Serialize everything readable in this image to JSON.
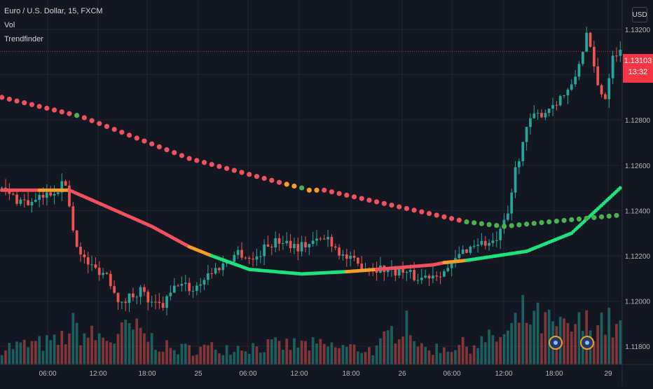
{
  "legend": {
    "symbol": "Euro / U.S. Dollar, 15, FXCM",
    "indicator_1": "Vol",
    "indicator_2": "Trendfinder"
  },
  "currency_button": "USD",
  "last_price": {
    "value": "1.13103",
    "countdown": "13:32"
  },
  "colors": {
    "background": "#131722",
    "grid": "#1f2430",
    "up_candle": "#26a69a",
    "down_candle": "#ef5350",
    "trend_bearish": "#f0525d",
    "trend_bullish": "#1ee37c",
    "trend_neutral": "#f59d29",
    "trend_green_dot": "#4caf50",
    "price_line": "#f23645"
  },
  "event_marker_icons": [
    "event-icon",
    "event-icon"
  ],
  "chart_data": {
    "type": "candlestick",
    "title": "Euro / U.S. Dollar, 15, FXCM",
    "y_axis": {
      "ticks": [
        1.132,
        1.13,
        1.128,
        1.126,
        1.124,
        1.122,
        1.12,
        1.118
      ],
      "tick_labels": [
        "1.13200",
        "1.13000",
        "1.12800",
        "1.12600",
        "1.12400",
        "1.12200",
        "1.12000",
        "1.11800"
      ],
      "range": [
        1.1172,
        1.1333
      ]
    },
    "x_axis": {
      "tick_labels": [
        "06:00",
        "12:00",
        "18:00",
        "25",
        "06:00",
        "12:00",
        "18:00",
        "26",
        "06:00",
        "12:00",
        "18:00",
        "29"
      ]
    },
    "price_path": [
      [
        0,
        1.125
      ],
      [
        5,
        1.1245
      ],
      [
        9,
        1.1243
      ],
      [
        14,
        1.1248
      ],
      [
        18,
        1.1252
      ],
      [
        20,
        1.1232
      ],
      [
        22,
        1.122
      ],
      [
        25,
        1.1215
      ],
      [
        29,
        1.1212
      ],
      [
        31,
        1.1205
      ],
      [
        33,
        1.1198
      ],
      [
        35,
        1.1202
      ],
      [
        38,
        1.1205
      ],
      [
        41,
        1.1198
      ],
      [
        44,
        1.1198
      ],
      [
        48,
        1.1208
      ],
      [
        52,
        1.1205
      ],
      [
        56,
        1.1212
      ],
      [
        60,
        1.1216
      ],
      [
        64,
        1.1222
      ],
      [
        68,
        1.1218
      ],
      [
        72,
        1.1225
      ],
      [
        76,
        1.1227
      ],
      [
        80,
        1.1224
      ],
      [
        84,
        1.1226
      ],
      [
        88,
        1.1228
      ],
      [
        92,
        1.122
      ],
      [
        96,
        1.1216
      ],
      [
        100,
        1.1215
      ],
      [
        104,
        1.1214
      ],
      [
        108,
        1.1213
      ],
      [
        112,
        1.121
      ],
      [
        116,
        1.1212
      ],
      [
        120,
        1.1214
      ],
      [
        124,
        1.1222
      ],
      [
        128,
        1.1226
      ],
      [
        132,
        1.1225
      ],
      [
        134,
        1.123
      ],
      [
        136,
        1.1238
      ],
      [
        138,
        1.1258
      ],
      [
        140,
        1.127
      ],
      [
        142,
        1.128
      ],
      [
        146,
        1.1284
      ],
      [
        150,
        1.129
      ],
      [
        153,
        1.1294
      ],
      [
        155,
        1.1305
      ],
      [
        157,
        1.1318
      ],
      [
        160,
        1.1295
      ],
      [
        162,
        1.129
      ],
      [
        164,
        1.131
      ]
    ],
    "series": [
      {
        "kind": "slow_trend_dots",
        "points": [
          [
            0,
            1.129,
            "red"
          ],
          [
            20,
            1.1282,
            "green"
          ],
          [
            22,
            1.1281,
            "red"
          ],
          [
            50,
            1.1263,
            "red"
          ],
          [
            75,
            1.1252,
            "orange"
          ],
          [
            80,
            1.125,
            "green"
          ],
          [
            82,
            1.1249,
            "orange"
          ],
          [
            86,
            1.1249,
            "red"
          ],
          [
            124,
            1.1235,
            "green"
          ],
          [
            134,
            1.1233,
            "green"
          ],
          [
            146,
            1.1235,
            "green"
          ],
          [
            165,
            1.1238,
            "green"
          ]
        ]
      },
      {
        "kind": "fast_trend_line",
        "points": [
          [
            0,
            1.1249,
            "red"
          ],
          [
            10,
            1.1249,
            "orange"
          ],
          [
            18,
            1.1249,
            "red"
          ],
          [
            40,
            1.1233,
            "red"
          ],
          [
            50,
            1.1224,
            "orange"
          ],
          [
            56,
            1.122,
            "green"
          ],
          [
            66,
            1.1214,
            "green"
          ],
          [
            80,
            1.1212,
            "green"
          ],
          [
            92,
            1.1213,
            "orange"
          ],
          [
            100,
            1.1214,
            "red"
          ],
          [
            115,
            1.1216,
            "red"
          ],
          [
            118,
            1.1217,
            "orange"
          ],
          [
            124,
            1.1218,
            "green"
          ],
          [
            140,
            1.1222,
            "green"
          ],
          [
            152,
            1.123,
            "green"
          ],
          [
            165,
            1.125,
            "green"
          ]
        ]
      }
    ],
    "volume_profile": [
      [
        0,
        0.35
      ],
      [
        15,
        0.45
      ],
      [
        19,
        0.75
      ],
      [
        22,
        0.6
      ],
      [
        30,
        0.5
      ],
      [
        34,
        0.75
      ],
      [
        45,
        0.3
      ],
      [
        60,
        0.35
      ],
      [
        80,
        0.4
      ],
      [
        100,
        0.3
      ],
      [
        108,
        1.0
      ],
      [
        112,
        0.3
      ],
      [
        125,
        0.4
      ],
      [
        135,
        0.6
      ],
      [
        139,
        1.0
      ],
      [
        150,
        0.7
      ],
      [
        160,
        0.9
      ],
      [
        165,
        0.7
      ]
    ]
  }
}
